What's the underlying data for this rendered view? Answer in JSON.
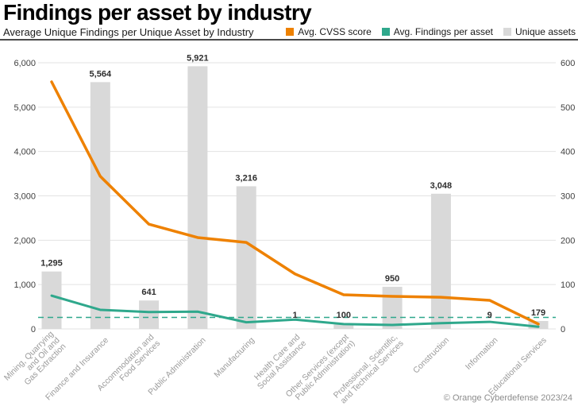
{
  "footer": {
    "credit": "© Orange Cyberdefense 2023/24"
  },
  "colors": {
    "cvss_line": "#EE8100",
    "findings_line": "#2FA88C",
    "bars": "#D9D9D9",
    "gridline": "#E3E3E3",
    "axis_tick_text": "#3F3F3F",
    "bar_label_text": "#2E2E2E",
    "category_text": "#9B9B9B",
    "divider": "#4A4A4A"
  },
  "chart_data": {
    "type": "combo-bar-line",
    "title": "Findings per asset by industry",
    "subtitle": "Average Unique Findings per Unique Asset by Industry",
    "xlabel": "",
    "ylabel": "",
    "grid": true,
    "legend_position": "top-right",
    "categories": [
      "Mining, Quarrying and Oil and Gas Extraction",
      "Finance and Insurance",
      "Accommodation and Food Services",
      "Public Administration",
      "Manufacturing",
      "Health Care and Social Assistance",
      "Other Services (except Public Administration)",
      "Professional, Scientific, and Technical Services",
      "Construction",
      "Information",
      "Educational Services"
    ],
    "category_lines": [
      [
        "Mining, Quarrying",
        "and Oil and",
        "Gas Extraction"
      ],
      [
        "Finance and Insurance"
      ],
      [
        "Accommodation and",
        "Food Services"
      ],
      [
        "Public Administration"
      ],
      [
        "Manufacturing"
      ],
      [
        "Health Care and",
        "Social Assistance"
      ],
      [
        "Other Services (except",
        "Public Administration)"
      ],
      [
        "Professional, Scientific,",
        "and Technical Services"
      ],
      [
        "Construction"
      ],
      [
        "Information"
      ],
      [
        "Educational Services"
      ]
    ],
    "left_axis": {
      "min": 0,
      "max": 6000,
      "step": 1000,
      "tick_labels": [
        "0",
        "1,000",
        "2,000",
        "3,000",
        "4,000",
        "5,000",
        "6,000"
      ]
    },
    "right_axis": {
      "min": 0,
      "max": 600,
      "step": 100,
      "tick_labels": [
        "0",
        "100",
        "200",
        "300",
        "400",
        "500",
        "600"
      ]
    },
    "series": [
      {
        "name": "Avg. CVSS score",
        "type": "line",
        "axis": "left",
        "color": "#EE8100",
        "values": [
          5570,
          3440,
          2360,
          2060,
          1950,
          1240,
          770,
          735,
          715,
          645,
          110
        ]
      },
      {
        "name": "Avg. Findings per asset",
        "type": "line",
        "axis": "right",
        "color": "#2FA88C",
        "values": [
          75,
          43,
          38,
          39,
          15,
          21,
          11,
          9,
          13,
          16,
          5
        ]
      },
      {
        "name": "Unique assets",
        "type": "bar",
        "axis": "left",
        "color": "#D9D9D9",
        "values": [
          1295,
          5564,
          641,
          5921,
          3216,
          1,
          100,
          950,
          3048,
          9,
          179
        ],
        "labels": [
          "1,295",
          "5,564",
          "641",
          "5,921",
          "3,216",
          "1",
          "100",
          "950",
          "3,048",
          "9",
          "179"
        ]
      }
    ],
    "reference_line": {
      "axis": "right",
      "value": 26,
      "style": "dashed",
      "color": "#2FA88C"
    }
  }
}
